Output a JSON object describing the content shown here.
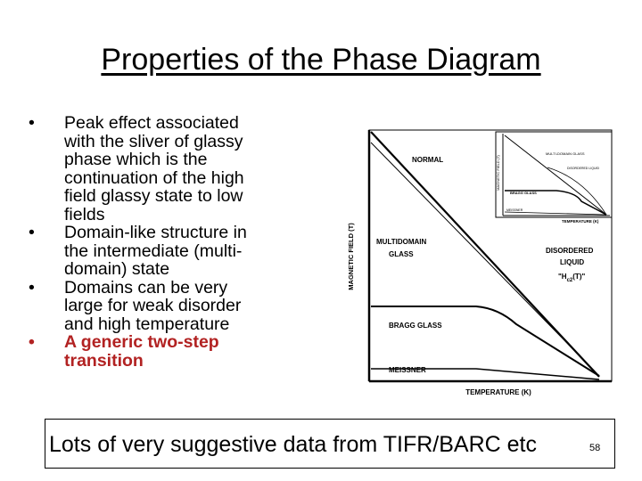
{
  "title": "Properties of the Phase Diagram",
  "bullets": [
    {
      "lines": [
        "Peak effect associated",
        "with the sliver of glassy",
        "phase which is the",
        "continuation of the high",
        "field glassy state to low",
        "fields"
      ]
    },
    {
      "lines": [
        "Domain-like structure in",
        "the intermediate (multi-",
        "domain) state"
      ]
    },
    {
      "lines": [
        "Domains can be very",
        "large for weak disorder",
        "and high temperature"
      ]
    },
    {
      "lines": [
        "A generic two-step",
        "transition"
      ],
      "accent": true
    }
  ],
  "bullet_glyph": "•",
  "diagram": {
    "ylabel": "MAGNETIC FIELD (T)",
    "xlabel": "TEMPERATURE (K)",
    "regions": {
      "normal": "NORMAL",
      "multidomain_1": "MULTIDOMAIN",
      "multidomain_2": "GLASS",
      "disordered_1": "DISORDERED",
      "disordered_2": "LIQUID",
      "hc2": "\"H",
      "hc2_sub": "c2",
      "hc2_tail": "(T)\"",
      "bragg": "BRAGG GLASS",
      "meissner": "MEISSNER"
    },
    "inset": {
      "ylabel": "MAGNETIC FIELD (T)",
      "xlabel": "TEMPERATURE (K)",
      "multidomain": "MULTI-DOMAIN GLASS",
      "disordered": "DISORDERED LIQUID",
      "bragg": "BRAGG GLASS",
      "meissner": "MEISSNER"
    }
  },
  "footer": {
    "text": "Lots of very suggestive data from TIFR/BARC etc",
    "page": "58"
  },
  "colors": {
    "accent": "#b22222",
    "ink": "#000000"
  }
}
